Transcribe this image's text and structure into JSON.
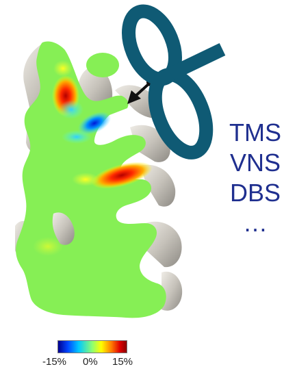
{
  "techniques": {
    "items": [
      "TMS",
      "VNS",
      "DBS",
      "…"
    ]
  },
  "colorbar": {
    "min_label": "-15%",
    "mid_label": "0%",
    "max_label": "15%",
    "colors": [
      "#00008f",
      "#0045ff",
      "#00c8ff",
      "#8fff70",
      "#ffff00",
      "#ff7a00",
      "#e00000",
      "#8a0000"
    ]
  },
  "colors": {
    "coil": "#0f5a74",
    "brain_tissue": "#86ef55",
    "cortex_surface": "#c9c5bd",
    "text": "#1f2f8f"
  },
  "icons": {
    "coil": "figure-eight-coil-icon",
    "pointer": "arrow-pointer-icon"
  }
}
